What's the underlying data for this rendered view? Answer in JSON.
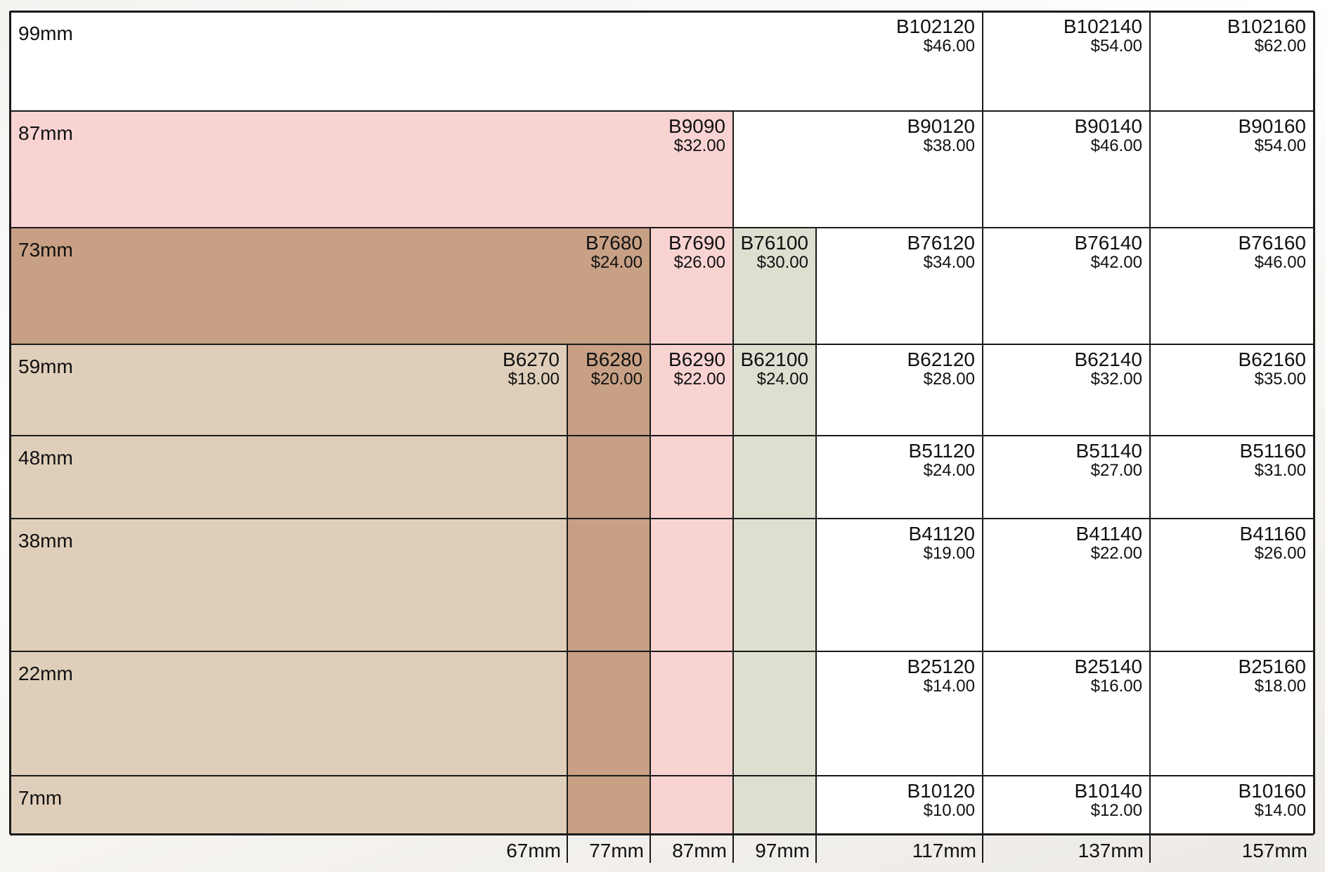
{
  "colors": {
    "tan": "#dfcfba",
    "brown": "#c8a085",
    "pink": "#f9d3d2",
    "sage": "#dedfd0",
    "white": "#ffffff",
    "line": "#1a1a1a"
  },
  "heights": [
    {
      "key": "h99",
      "label": "99mm"
    },
    {
      "key": "h87",
      "label": "87mm"
    },
    {
      "key": "h73",
      "label": "73mm"
    },
    {
      "key": "h59",
      "label": "59mm"
    },
    {
      "key": "h48",
      "label": "48mm"
    },
    {
      "key": "h38",
      "label": "38mm"
    },
    {
      "key": "h22",
      "label": "22mm"
    },
    {
      "key": "h7",
      "label": "7mm"
    }
  ],
  "widths": [
    {
      "key": "w67",
      "label": "67mm"
    },
    {
      "key": "w77",
      "label": "77mm"
    },
    {
      "key": "w87",
      "label": "87mm"
    },
    {
      "key": "w97",
      "label": "97mm"
    },
    {
      "key": "w117",
      "label": "117mm"
    },
    {
      "key": "w137",
      "label": "137mm"
    },
    {
      "key": "w157",
      "label": "157mm"
    }
  ],
  "products": [
    {
      "row": "h99",
      "col": "w117",
      "code": "B102120",
      "price": "$46.00"
    },
    {
      "row": "h99",
      "col": "w137",
      "code": "B102140",
      "price": "$54.00"
    },
    {
      "row": "h99",
      "col": "w157",
      "code": "B102160",
      "price": "$62.00"
    },
    {
      "row": "h87",
      "col": "w87",
      "code": "B9090",
      "price": "$32.00"
    },
    {
      "row": "h87",
      "col": "w117",
      "code": "B90120",
      "price": "$38.00"
    },
    {
      "row": "h87",
      "col": "w137",
      "code": "B90140",
      "price": "$46.00"
    },
    {
      "row": "h87",
      "col": "w157",
      "code": "B90160",
      "price": "$54.00"
    },
    {
      "row": "h73",
      "col": "w77",
      "code": "B7680",
      "price": "$24.00"
    },
    {
      "row": "h73",
      "col": "w87",
      "code": "B7690",
      "price": "$26.00"
    },
    {
      "row": "h73",
      "col": "w97",
      "code": "B76100",
      "price": "$30.00"
    },
    {
      "row": "h73",
      "col": "w117",
      "code": "B76120",
      "price": "$34.00"
    },
    {
      "row": "h73",
      "col": "w137",
      "code": "B76140",
      "price": "$42.00"
    },
    {
      "row": "h73",
      "col": "w157",
      "code": "B76160",
      "price": "$46.00"
    },
    {
      "row": "h59",
      "col": "w67",
      "code": "B6270",
      "price": "$18.00"
    },
    {
      "row": "h59",
      "col": "w77",
      "code": "B6280",
      "price": "$20.00"
    },
    {
      "row": "h59",
      "col": "w87",
      "code": "B6290",
      "price": "$22.00"
    },
    {
      "row": "h59",
      "col": "w97",
      "code": "B62100",
      "price": "$24.00"
    },
    {
      "row": "h59",
      "col": "w117",
      "code": "B62120",
      "price": "$28.00"
    },
    {
      "row": "h59",
      "col": "w137",
      "code": "B62140",
      "price": "$32.00"
    },
    {
      "row": "h59",
      "col": "w157",
      "code": "B62160",
      "price": "$35.00"
    },
    {
      "row": "h48",
      "col": "w117",
      "code": "B51120",
      "price": "$24.00"
    },
    {
      "row": "h48",
      "col": "w137",
      "code": "B51140",
      "price": "$27.00"
    },
    {
      "row": "h48",
      "col": "w157",
      "code": "B51160",
      "price": "$31.00"
    },
    {
      "row": "h38",
      "col": "w117",
      "code": "B41120",
      "price": "$19.00"
    },
    {
      "row": "h38",
      "col": "w137",
      "code": "B41140",
      "price": "$22.00"
    },
    {
      "row": "h38",
      "col": "w157",
      "code": "B41160",
      "price": "$26.00"
    },
    {
      "row": "h22",
      "col": "w117",
      "code": "B25120",
      "price": "$14.00"
    },
    {
      "row": "h22",
      "col": "w137",
      "code": "B25140",
      "price": "$16.00"
    },
    {
      "row": "h22",
      "col": "w157",
      "code": "B25160",
      "price": "$18.00"
    },
    {
      "row": "h7",
      "col": "w117",
      "code": "B10120",
      "price": "$10.00"
    },
    {
      "row": "h7",
      "col": "w137",
      "code": "B10140",
      "price": "$12.00"
    },
    {
      "row": "h7",
      "col": "w157",
      "code": "B10160",
      "price": "$14.00"
    }
  ]
}
